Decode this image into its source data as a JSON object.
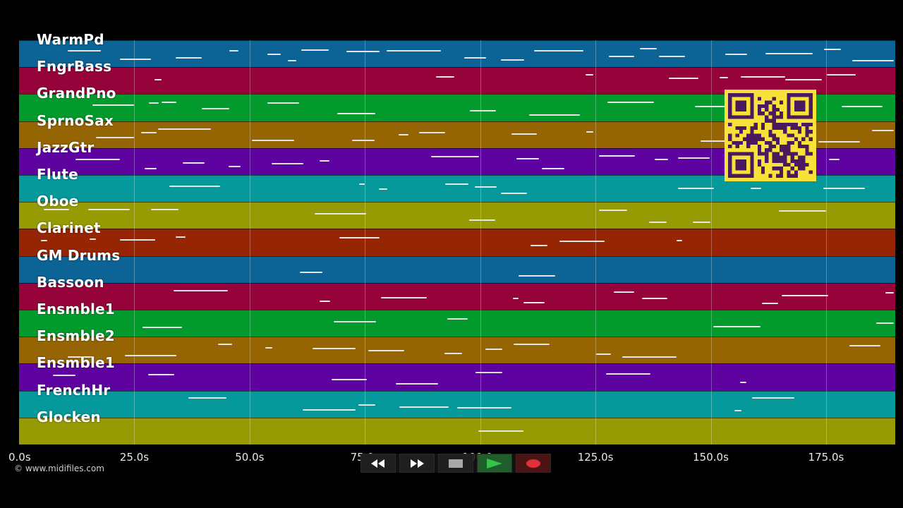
{
  "tracks": [
    {
      "name": "WarmPd",
      "color": "#0b6396"
    },
    {
      "name": "FngrBass",
      "color": "#96033a"
    },
    {
      "name": "GrandPno",
      "color": "#029a2c"
    },
    {
      "name": "SprnoSax",
      "color": "#966503"
    },
    {
      "name": "JazzGtr",
      "color": "#5e03a0"
    },
    {
      "name": "Flute",
      "color": "#05999b"
    },
    {
      "name": "Oboe",
      "color": "#969a03"
    },
    {
      "name": "Clarinet",
      "color": "#962603"
    },
    {
      "name": "GM Drums",
      "color": "#0b6396"
    },
    {
      "name": "Bassoon",
      "color": "#96033a"
    },
    {
      "name": "Ensmble1",
      "color": "#029a2c"
    },
    {
      "name": "Ensmble2",
      "color": "#966503"
    },
    {
      "name": "Ensmble1",
      "color": "#5e03a0"
    },
    {
      "name": "FrenchHr",
      "color": "#05999b"
    },
    {
      "name": "Glocken",
      "color": "#969a03"
    }
  ],
  "timeline": {
    "max_seconds": 190,
    "ticks": [
      "0.0s",
      "25.0s",
      "50.0s",
      "75.0s",
      "100.0s",
      "125.0s",
      "150.0s",
      "175.0s"
    ]
  },
  "copyright": "© www.midifiles.com",
  "transport": {
    "rewind_icon": "rewind-icon",
    "fast_forward_icon": "fast-forward-icon",
    "stop_icon": "stop-icon",
    "play_icon": "play-icon",
    "record_icon": "record-icon"
  },
  "qr_code": {
    "icon": "qr-code-icon",
    "color": "#f8e23a",
    "fg": "#4a1a5e"
  }
}
